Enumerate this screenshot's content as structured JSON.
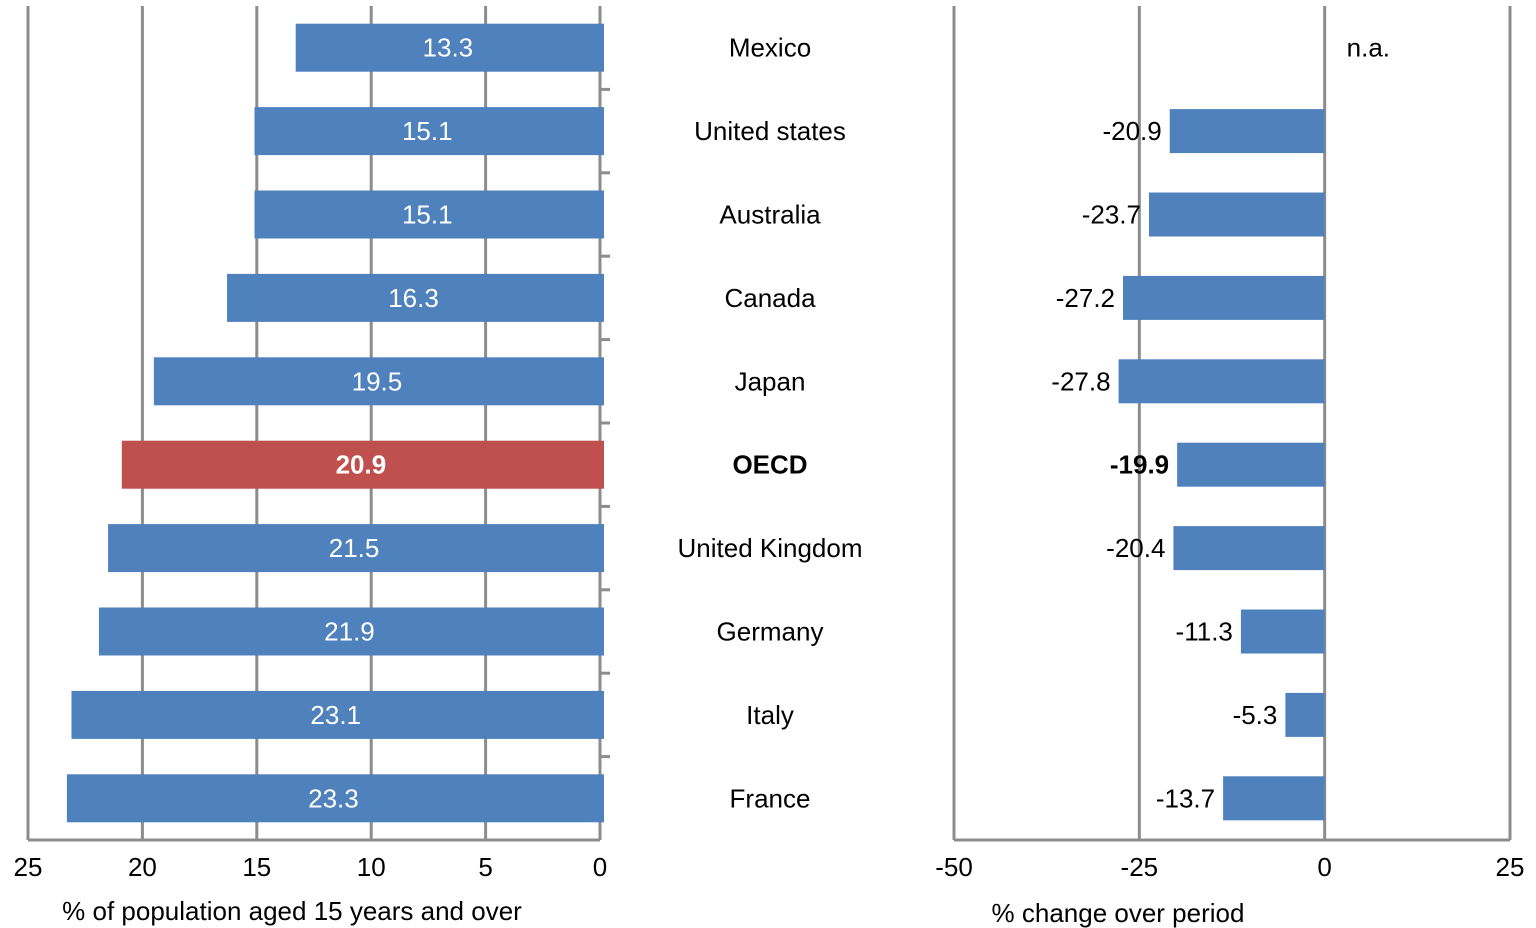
{
  "chart_data": [
    {
      "type": "bar",
      "orientation": "horizontal",
      "x_reversed": true,
      "categories": [
        "Mexico",
        "United states",
        "Australia",
        "Canada",
        "Japan",
        "OECD",
        "United Kingdom",
        "Germany",
        "Italy",
        "France"
      ],
      "values": [
        13.3,
        15.1,
        15.1,
        16.3,
        19.5,
        20.9,
        21.5,
        21.9,
        23.1,
        23.3
      ],
      "data_labels": [
        "13.3",
        "15.1",
        "15.1",
        "16.3",
        "19.5",
        "20.9",
        "21.5",
        "21.9",
        "23.1",
        "23.3"
      ],
      "highlight_category": "OECD",
      "xlabel": "% of population aged 15 years and over",
      "xlim": [
        0,
        25
      ],
      "xticks": [
        "25",
        "20",
        "15",
        "10",
        "5",
        "0"
      ],
      "grid": "vertical",
      "bar_color": "#4f81bd",
      "highlight_color": "#c0504d"
    },
    {
      "type": "bar",
      "orientation": "horizontal",
      "categories": [
        "Mexico",
        "United states",
        "Australia",
        "Canada",
        "Japan",
        "OECD",
        "United Kingdom",
        "Germany",
        "Italy",
        "France"
      ],
      "values": [
        null,
        -20.9,
        -23.7,
        -27.2,
        -27.8,
        -19.9,
        -20.4,
        -11.3,
        -5.3,
        -13.7
      ],
      "data_labels": [
        "n.a.",
        "-20.9",
        "-23.7",
        "-27.2",
        "-27.8",
        "-19.9",
        "-20.4",
        "-11.3",
        "-5.3",
        "-13.7"
      ],
      "highlight_category": "OECD",
      "xlabel": "% change over period",
      "xlim": [
        -50,
        25
      ],
      "xticks": [
        "-50",
        "-25",
        "0",
        "25"
      ],
      "grid": "vertical",
      "bar_color": "#4f81bd"
    }
  ],
  "colors": {
    "grid": "#8c8c8c",
    "axis": "#8c8c8c",
    "text": "#000000"
  }
}
